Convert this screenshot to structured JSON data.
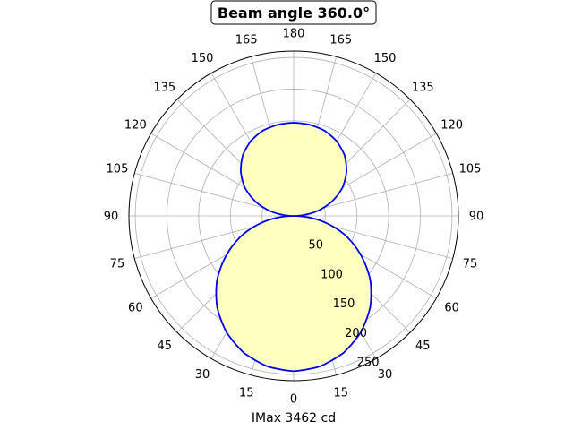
{
  "chart_data": {
    "type": "polar",
    "title": "Beam angle 360.0°",
    "xlabel": "IMax 3462 cd",
    "angle_tick_labels": [
      "0",
      "15",
      "30",
      "45",
      "60",
      "75",
      "90",
      "105",
      "120",
      "135",
      "150",
      "165",
      "180",
      "165",
      "150",
      "135",
      "120",
      "105",
      "90",
      "75",
      "60",
      "45",
      "30",
      "15"
    ],
    "radial_tick_labels": [
      "50",
      "100",
      "150",
      "200",
      "250"
    ],
    "radial_range": [
      0,
      260
    ],
    "grid": true,
    "colors": {
      "curve": "#0000ee",
      "fill": "#ffffc0",
      "grid": "#b0b0b0",
      "frame": "#000000"
    },
    "series": [
      {
        "angle_deg": [
          0,
          10,
          20,
          30,
          40,
          50,
          60,
          70,
          80,
          90,
          100,
          110,
          120,
          130,
          140,
          150,
          160,
          170,
          180
        ],
        "values": [
          245,
          241,
          230,
          212,
          188,
          158,
          122,
          85,
          43,
          0,
          33,
          63,
          89,
          109,
          125,
          136,
          143,
          146,
          147
        ]
      }
    ]
  }
}
